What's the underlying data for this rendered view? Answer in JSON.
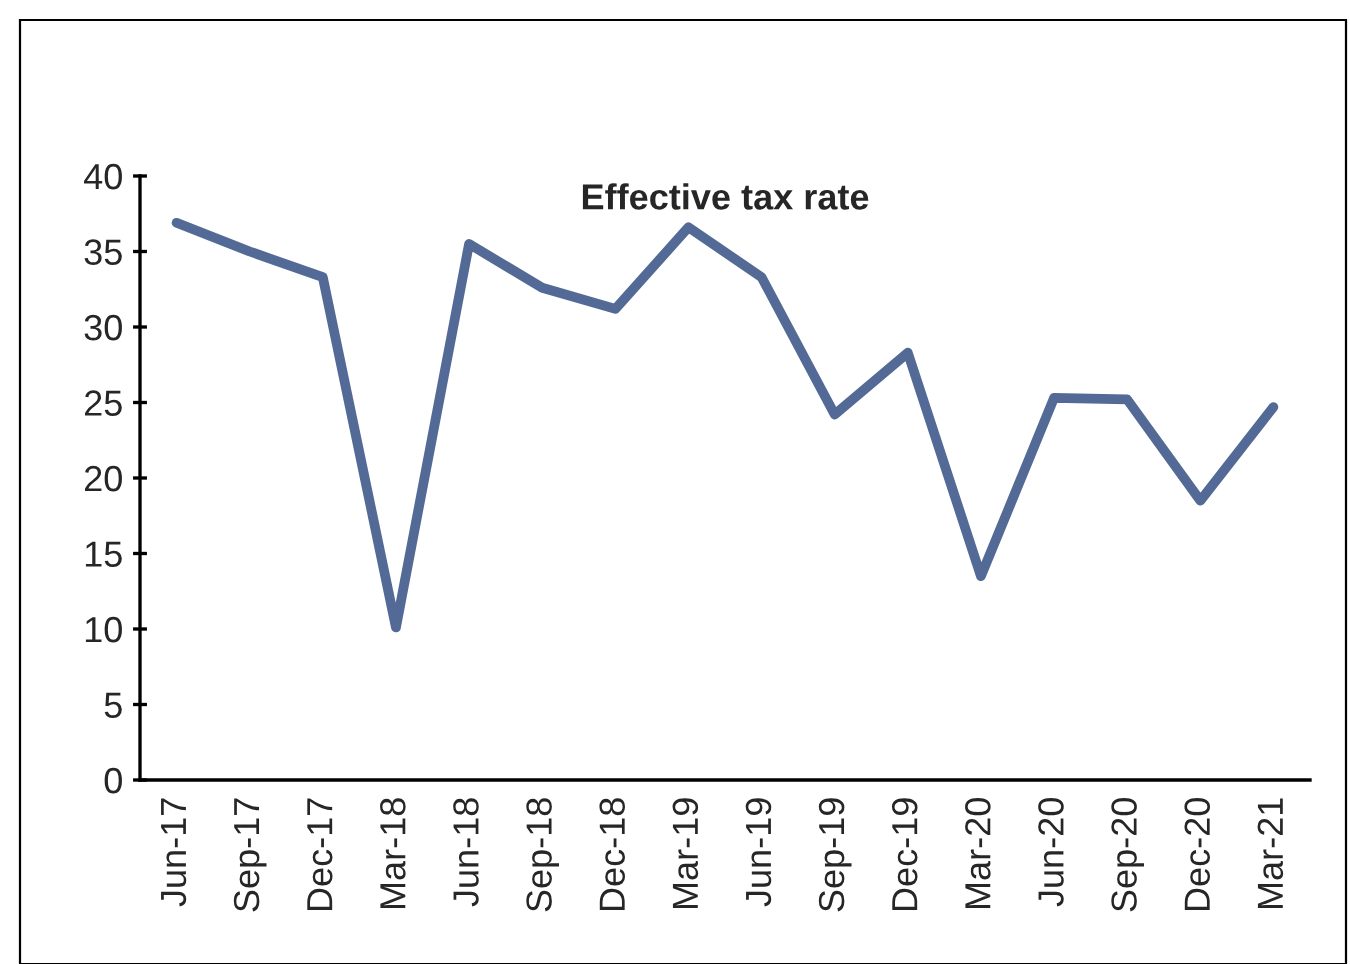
{
  "chart_data": {
    "type": "line",
    "title": "Effective tax rate",
    "categories": [
      "Jun-17",
      "Sep-17",
      "Dec-17",
      "Mar-18",
      "Jun-18",
      "Sep-18",
      "Dec-18",
      "Mar-19",
      "Jun-19",
      "Sep-19",
      "Dec-19",
      "Mar-20",
      "Jun-20",
      "Sep-20",
      "Dec-20",
      "Mar-21"
    ],
    "series": [
      {
        "color": "#546a96",
        "values": [
          36.9,
          35.0,
          33.3,
          10.1,
          35.5,
          32.6,
          31.2,
          36.6,
          33.3,
          24.2,
          28.3,
          13.5,
          25.3,
          25.2,
          18.5,
          24.7
        ]
      }
    ],
    "ylim": [
      0,
      40
    ],
    "yticks": [
      0,
      5,
      10,
      15,
      20,
      25,
      30,
      35,
      40
    ],
    "grid": false,
    "legend": false,
    "marker": "none",
    "line_style": "solid"
  }
}
